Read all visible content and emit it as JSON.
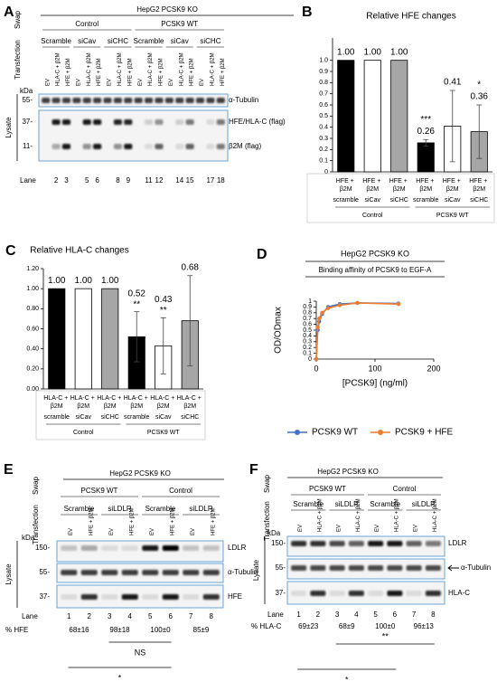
{
  "chart_data": [
    {
      "type": "bar",
      "panel": "B",
      "title": "Relative HFE changes",
      "categories": [
        "HFE + β2M",
        "HFE + β2M",
        "HFE + β2M",
        "HFE + β2M",
        "HFE + β2M",
        "HFE + β2M"
      ],
      "conditions": [
        "scramble",
        "siCav",
        "siCHC",
        "scramble",
        "siCav",
        "siCHC"
      ],
      "groups": [
        "Control",
        "PCSK9 WT"
      ],
      "values": [
        1,
        1,
        1,
        0.26,
        0.41,
        0.36
      ],
      "value_labels": [
        "1.00",
        "1.00",
        "1.00",
        "0.26",
        "0.41",
        "0.36"
      ],
      "errors": [
        0,
        0,
        0,
        0.03,
        0.32,
        0.24
      ],
      "significance": [
        null,
        null,
        null,
        "***",
        null,
        "*"
      ],
      "colors": [
        "#000000",
        "#ffffff",
        "#a6a6a6",
        "#000000",
        "#ffffff",
        "#a6a6a6"
      ],
      "ylim": [
        0,
        1.2
      ],
      "yticks": [
        0,
        0.1,
        0.2,
        0.3,
        0.4,
        0.5,
        0.6,
        0.7,
        0.8,
        0.9,
        {
          "value": 1,
          "label": "1.0"
        }
      ]
    },
    {
      "type": "bar",
      "panel": "C",
      "title": "Relative HLA-C changes",
      "categories": [
        "HLA-C + β2M",
        "HLA-C + β2M",
        "HLA-C + β2M",
        "HLA-C + β2M",
        "HLA-C + β2M",
        "HLA-C + β2M"
      ],
      "conditions": [
        "scramble",
        "siCav",
        "siCHC",
        "scramble",
        "siCav",
        "siCHC"
      ],
      "groups": [
        "Control",
        "PCSK9 WT"
      ],
      "values": [
        1,
        1,
        1,
        0.52,
        0.43,
        0.68
      ],
      "value_labels": [
        "1.00",
        "1.00",
        "1.00",
        "0.52",
        "0.43",
        "0.68"
      ],
      "errors": [
        0,
        0,
        0,
        0.25,
        0.28,
        0.45
      ],
      "significance": [
        null,
        null,
        null,
        "**",
        "**",
        null
      ],
      "colors": [
        "#000000",
        "#ffffff",
        "#a6a6a6",
        "#000000",
        "#ffffff",
        "#a6a6a6"
      ],
      "ylim": [
        0,
        1.2
      ],
      "yticks": [
        {
          "value": 0,
          "label": "0.00"
        },
        {
          "value": 0.2,
          "label": "0.20"
        },
        {
          "value": 0.4,
          "label": "0.40"
        },
        {
          "value": 0.6,
          "label": "0.60"
        },
        {
          "value": 0.8,
          "label": "0.80"
        },
        {
          "value": 1,
          "label": "1.00"
        },
        {
          "value": 1.2,
          "label": "1.20"
        }
      ]
    },
    {
      "type": "line",
      "panel": "D",
      "title": "HepG2 PCSK9 KO",
      "subtitle": "Binding affinity of PCSK9 to EGF-A",
      "x_label": "[PCSK9] (ng/ml)",
      "y_label": "OD/ODmax",
      "x": [
        0,
        2.5,
        5,
        10,
        20,
        40,
        70,
        140
      ],
      "series": [
        {
          "name": "PCSK9 WT",
          "color": "#4472c4",
          "values": [
            0,
            0.5,
            0.65,
            0.78,
            0.9,
            0.95,
            0.97,
            0.96
          ]
        },
        {
          "name": "PCSK9 + HFE",
          "color": "#ed7d31",
          "values": [
            0,
            0.55,
            0.7,
            0.8,
            0.88,
            0.93,
            0.97,
            0.95
          ]
        }
      ],
      "xlim": [
        0,
        200
      ],
      "xticks": [
        0,
        100,
        200
      ],
      "ylim": [
        0,
        1
      ],
      "yticks": [
        0,
        0.1,
        0.2,
        0.3,
        0.4,
        0.5,
        0.6,
        0.7,
        0.8,
        0.9,
        1
      ],
      "legend": "bottom"
    }
  ],
  "blot_panels": [
    {
      "panel": "A",
      "title": "HepG2 PCSK9 KO",
      "swap_label": "Swap",
      "transfection_label": "Transfection",
      "swap": [
        "Control",
        "PCSK9 WT"
      ],
      "transfection": [
        "Scramble",
        "siCav",
        "siCHC",
        "Scramble",
        "siCav",
        "siCHC"
      ],
      "lanes": [
        "EV",
        "HLA-C + β2M",
        "HFE + β2M",
        "EV",
        "HLA-C + β2M",
        "HFE + β2M",
        "EV",
        "HLA-C + β2M",
        "HFE + β2M",
        "EV",
        "HLA-C + β2M",
        "HFE + β2M",
        "EV",
        "HLA-C + β2M",
        "HFE + β2M",
        "EV",
        "HLA-C + β2M",
        "HFE + β2M"
      ],
      "kda_label": "kDa",
      "lysate_label": "Lysate",
      "markers": [
        "55-",
        "37-",
        "11-"
      ],
      "blots": [
        "α-Tubulin",
        "HFE/HLA-C (flag)",
        "β2M (flag)"
      ],
      "lane_label": "Lane",
      "lane_numbers": [
        2,
        3,
        5,
        6,
        8,
        9,
        11,
        12,
        14,
        15,
        17,
        18
      ]
    },
    {
      "panel": "E",
      "title": "HepG2 PCSK9 KO",
      "swap_label": "Swap",
      "transfection_label": "Transfection",
      "swap": [
        "PCSK9 WT",
        "Control"
      ],
      "transfection": [
        "Scramble",
        "siLDLR",
        "Scramble",
        "siLDLR"
      ],
      "lanes": [
        "EV",
        "HFE + β2M",
        "EV",
        "HFE + β2M",
        "EV",
        "HFE + β2M",
        "EV",
        "HFE + β2M"
      ],
      "kda_label": "kDa",
      "lysate_label": "Lysate",
      "markers": [
        "150-",
        "55-",
        "37-"
      ],
      "blots": [
        "LDLR",
        "α-Tubulin",
        "HFE"
      ],
      "lane_label": "Lane",
      "lane_numbers": [
        1,
        2,
        3,
        4,
        5,
        6,
        7,
        8
      ],
      "quant_label": "% HFE",
      "quant": [
        "68±16",
        "98±18",
        "100±0",
        "85±9"
      ],
      "brackets": [
        "NS",
        "*"
      ]
    },
    {
      "panel": "F",
      "title": "HepG2 PCSK9 KO",
      "swap_label": "Swap",
      "transfection_label": "Transfection",
      "swap": [
        "PCSK9 WT",
        "Control"
      ],
      "transfection": [
        "Scramble",
        "siLDLR",
        "Scramble",
        "siLDLR"
      ],
      "lanes": [
        "EV",
        "HLA-C + β2M",
        "EV",
        "HLA-C + β2M",
        "EV",
        "HLA-C + β2M",
        "EV",
        "HLA-C + β2M"
      ],
      "kda_label": "kDa",
      "lysate_label": "Lysate",
      "markers": [
        "150-",
        "55-",
        "37-"
      ],
      "blots": [
        "LDLR",
        "α-Tubulin",
        "HLA-C"
      ],
      "lane_label": "Lane",
      "lane_numbers": [
        1,
        2,
        3,
        4,
        5,
        6,
        7,
        8
      ],
      "quant_label": "% HLA-C",
      "quant": [
        "69±23",
        "68±9",
        "100±0",
        "96±13"
      ],
      "brackets": [
        "**",
        "*"
      ]
    }
  ]
}
